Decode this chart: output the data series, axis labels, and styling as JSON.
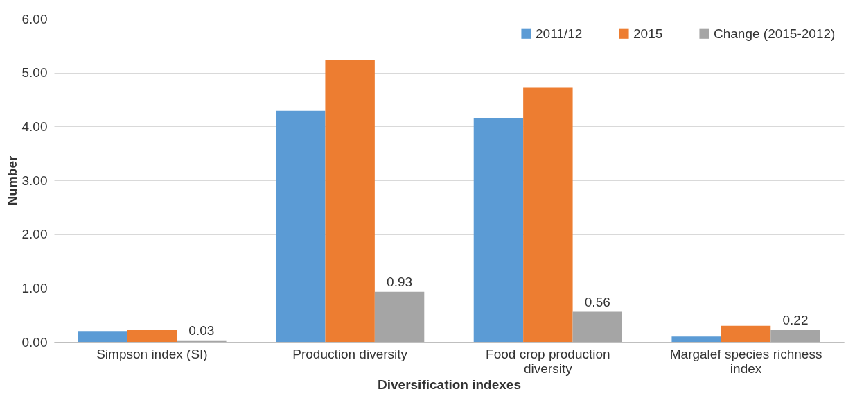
{
  "chart_data": {
    "type": "bar",
    "xlabel": "Diversification indexes",
    "ylabel": "Number",
    "categories": [
      "Simpson index (SI)",
      "Production diversity",
      "Food crop production diversity",
      "Margalef species richness index"
    ],
    "series": [
      {
        "name": "2011/12",
        "color": "#5b9bd5",
        "values": [
          0.19,
          4.29,
          4.16,
          0.1
        ]
      },
      {
        "name": "2015",
        "color": "#ed7d31",
        "values": [
          0.22,
          5.24,
          4.72,
          0.3
        ]
      },
      {
        "name": "Change (2015-2012)",
        "color": "#a5a5a5",
        "values": [
          0.03,
          0.93,
          0.56,
          0.22
        ],
        "value_labels": [
          "0.03",
          "0.93",
          "0.56",
          "0.22"
        ]
      }
    ],
    "ylim": [
      0,
      6
    ],
    "yticks": [
      {
        "value": 0,
        "label": "0.00"
      },
      {
        "value": 1,
        "label": "1.00"
      },
      {
        "value": 2,
        "label": "2.00"
      },
      {
        "value": 3,
        "label": "3.00"
      },
      {
        "value": 4,
        "label": "4.00"
      },
      {
        "value": 5,
        "label": "5.00"
      },
      {
        "value": 6,
        "label": "6.00"
      }
    ],
    "grid": "y",
    "legend": "top right"
  }
}
